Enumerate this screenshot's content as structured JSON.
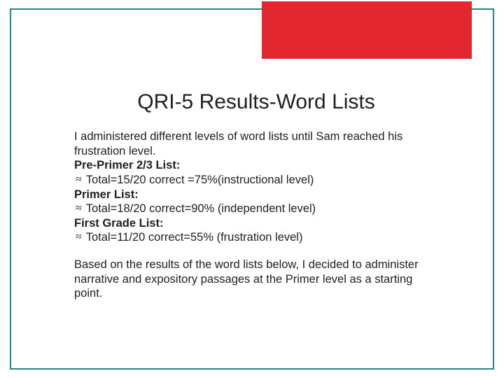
{
  "colors": {
    "border": "#1f8a8a",
    "accent_block": "#e22730",
    "text": "#1f1f1f",
    "background": "#ffffff"
  },
  "title": "QRI-5 Results-Word Lists",
  "intro": "I administered different levels of word lists until Sam reached his frustration level.",
  "lists": [
    {
      "label": "Pre-Primer 2/3 List:",
      "result": "Total=15/20 correct =75%(instructional level)"
    },
    {
      "label": "Primer List:",
      "result": "Total=18/20 correct=90% (independent level)"
    },
    {
      "label": "First Grade List:",
      "result": "Total=11/20 correct=55% (frustration level)"
    }
  ],
  "bullet_glyph": "≈",
  "conclusion": "Based on the results of the word lists below, I decided to administer narrative and expository passages at the Primer level as a starting point."
}
